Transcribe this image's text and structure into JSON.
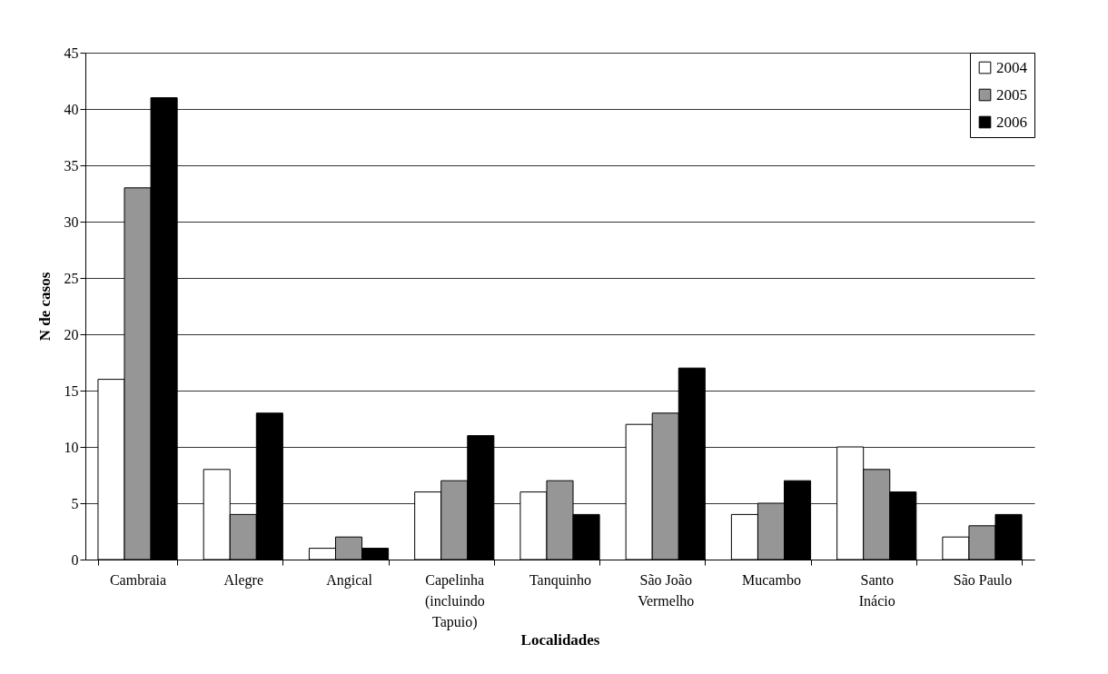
{
  "chart_data": {
    "type": "bar",
    "xlabel": "Localidades",
    "ylabel": "N de casos",
    "categories": [
      "Cambraia",
      "Alegre",
      "Angical",
      "Capelinha (incluindo Tapuio)",
      "Tanquinho",
      "São João Vermelho",
      "Mucambo",
      "Santo Inácio",
      "São Paulo"
    ],
    "series": [
      {
        "name": "2004",
        "color": "#ffffff",
        "values": [
          16,
          8,
          1,
          6,
          6,
          12,
          4,
          10,
          2
        ]
      },
      {
        "name": "2005",
        "color": "#969696",
        "values": [
          33,
          4,
          2,
          7,
          7,
          13,
          5,
          8,
          3
        ]
      },
      {
        "name": "2006",
        "color": "#000000",
        "values": [
          41,
          13,
          1,
          11,
          4,
          17,
          7,
          6,
          4
        ]
      }
    ],
    "ylim": [
      0,
      45
    ],
    "yticks": [
      0,
      5,
      10,
      15,
      20,
      25,
      30,
      35,
      40,
      45
    ],
    "grid": "y",
    "legend": "top right"
  }
}
